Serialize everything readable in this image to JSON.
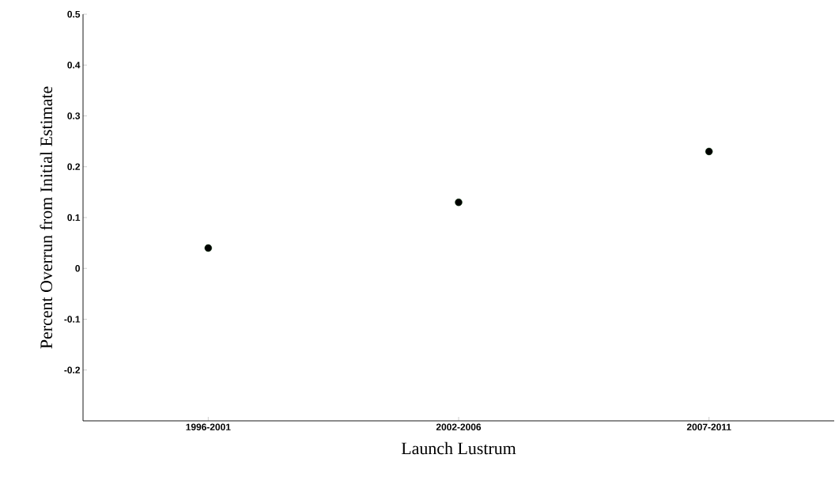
{
  "chart_data": {
    "type": "scatter",
    "xlabel": "Launch Lustrum",
    "ylabel": "Percent Overrun from Initial Estimate",
    "categories": [
      "1996-2001",
      "2002-2006",
      "2007-2011"
    ],
    "values": [
      0.04,
      0.13,
      0.23
    ],
    "color": "#000000",
    "marker": "circle",
    "ylim": [
      -0.3,
      0.5
    ],
    "yticks": [
      -0.2,
      -0.1,
      0,
      0.1,
      0.2,
      0.3,
      0.4,
      0.5
    ],
    "grid": false
  }
}
